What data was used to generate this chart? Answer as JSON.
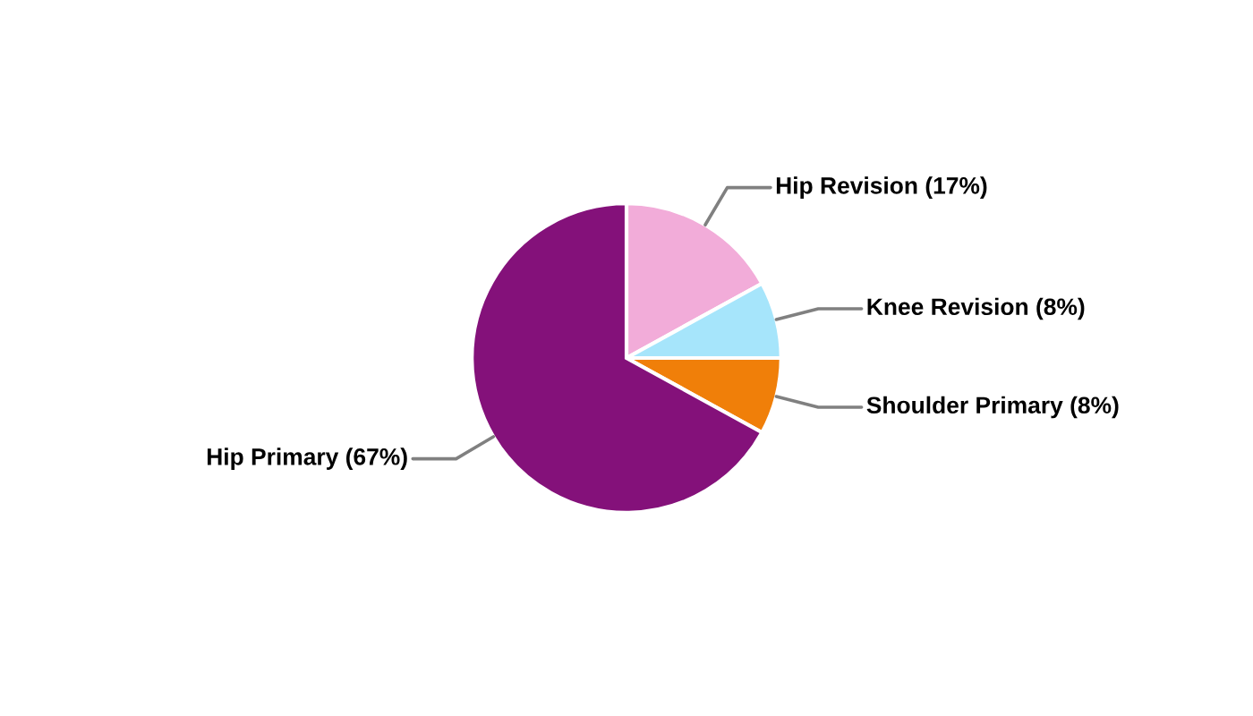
{
  "chart_data": {
    "type": "pie",
    "categories": [
      "Hip Revision (17%)",
      "Knee Revision (8%)",
      "Shoulder Primary (8%)",
      "Hip Primary (67%)"
    ],
    "values": [
      17,
      8,
      8,
      67
    ],
    "colors": [
      "#f2acd9",
      "#a6e5fb",
      "#f07f09",
      "#84117a"
    ]
  }
}
